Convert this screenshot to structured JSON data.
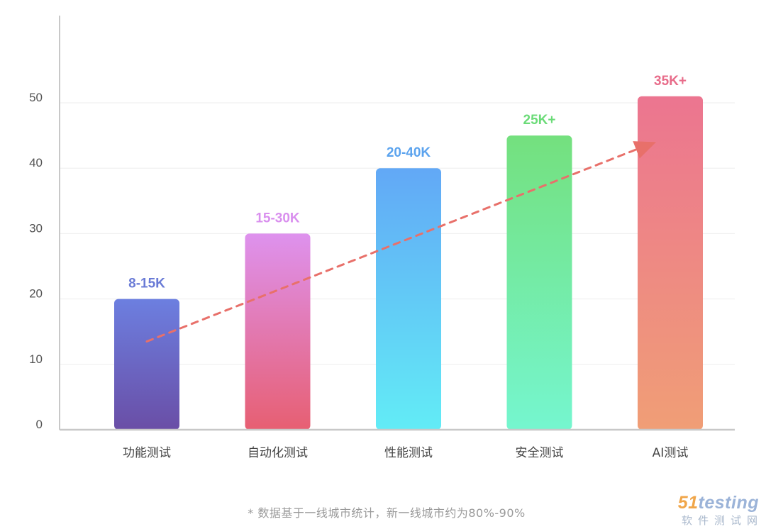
{
  "chart_data": {
    "type": "bar",
    "categories": [
      "功能测试",
      "自动化测试",
      "性能测试",
      "安全测试",
      "AI测试"
    ],
    "values": [
      20,
      30,
      40,
      45,
      51
    ],
    "value_labels": [
      "8-15K",
      "15-30K",
      "20-40K",
      "25K+",
      "35K+"
    ],
    "yticks": [
      0,
      10,
      20,
      30,
      40,
      50
    ],
    "ylim": [
      0,
      63
    ],
    "grid": true,
    "trend_arrow": {
      "from": [
        0,
        13.5
      ],
      "to": [
        4,
        44
      ]
    },
    "title": "",
    "xlabel": "",
    "ylabel": ""
  },
  "colors": {
    "bar_gradients": [
      [
        "#6c7fe0",
        "#6a4ea6"
      ],
      [
        "#de92ee",
        "#e75f72"
      ],
      [
        "#62a8f6",
        "#62ecf6"
      ],
      [
        "#74e07e",
        "#75f6cf"
      ],
      [
        "#ec7590",
        "#f09e76"
      ]
    ],
    "value_label_colors": [
      "#6a7bd6",
      "#d98fee",
      "#5ba3ee",
      "#6bdb78",
      "#e86c8a"
    ],
    "trend": "#e8706a",
    "axis": "#c8c8c8",
    "grid": "#eeeeee",
    "tick_text": "#555555",
    "category_text": "#444444"
  },
  "footnote": "* 数据基于一线城市统计，新一线城市约为80%-90%",
  "watermark": {
    "logo_num": "51",
    "logo_word": "testing",
    "subtitle": "软件测试网"
  }
}
